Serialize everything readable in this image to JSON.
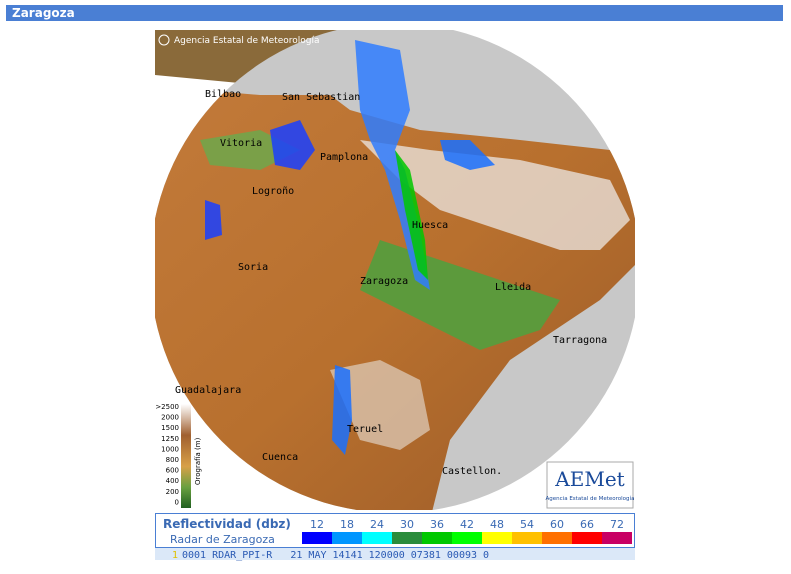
{
  "header": {
    "title": "Zaragoza"
  },
  "map": {
    "credit": "Agencia Estatal de Meteorología",
    "cities": [
      "Bilbao",
      "San Sebastian",
      "Vitoria",
      "Pamplona",
      "Logroño",
      "Huesca",
      "Soria",
      "Zaragoza",
      "Lleida",
      "Tarragona",
      "Guadalajara",
      "Teruel",
      "Cuenca",
      "Castellon."
    ],
    "orography": {
      "title": "Orografía (m)",
      "labels": [
        ">2500",
        "2000",
        "1500",
        "1250",
        "1000",
        "800",
        "600",
        "400",
        "200",
        "0"
      ]
    },
    "logo": {
      "name": "AEMet",
      "subtitle": "Agencia Estatal de Meteorología"
    }
  },
  "legend": {
    "title": "Reflectividad (dbz)",
    "subtitle": "Radar de Zaragoza",
    "levels": [
      {
        "value": "12",
        "color": "#0000ff"
      },
      {
        "value": "18",
        "color": "#0096ff"
      },
      {
        "value": "24",
        "color": "#00ffff"
      },
      {
        "value": "30",
        "color": "#2a8c3c"
      },
      {
        "value": "36",
        "color": "#00c800"
      },
      {
        "value": "42",
        "color": "#00ff00"
      },
      {
        "value": "48",
        "color": "#ffff00"
      },
      {
        "value": "54",
        "color": "#ffc000"
      },
      {
        "value": "60",
        "color": "#ff7000"
      },
      {
        "value": "66",
        "color": "#ff0000"
      },
      {
        "value": "72",
        "color": "#c80064"
      }
    ]
  },
  "status": "0001 RDAR_PPI-R   21 MAY 14141 120000 07381 00093 0"
}
